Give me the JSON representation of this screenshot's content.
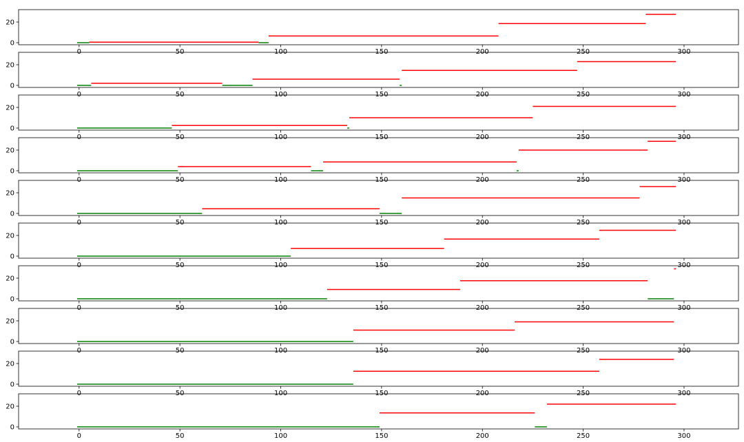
{
  "chart_data": [
    {
      "type": "line",
      "xlim": [
        -30,
        327
      ],
      "ylim": [
        -2,
        32
      ],
      "x_ticks": [
        0,
        50,
        100,
        150,
        200,
        250,
        300
      ],
      "y_ticks": [
        0,
        20
      ],
      "segments": [
        {
          "start": -1,
          "end": 5,
          "y": 0,
          "color": "#008000"
        },
        {
          "start": 5,
          "end": 89,
          "y": 0.5,
          "color": "#ff0000"
        },
        {
          "start": 89,
          "end": 94,
          "y": 0,
          "color": "#008000"
        },
        {
          "start": 94,
          "end": 208,
          "y": 6.5,
          "color": "#ff0000"
        },
        {
          "start": 208,
          "end": 281,
          "y": 18.5,
          "color": "#ff0000"
        },
        {
          "start": 281,
          "end": 296,
          "y": 27.5,
          "color": "#ff0000"
        }
      ]
    },
    {
      "type": "line",
      "xlim": [
        -30,
        327
      ],
      "ylim": [
        -2,
        32
      ],
      "x_ticks": [
        0,
        50,
        100,
        150,
        200,
        250,
        300
      ],
      "y_ticks": [
        0,
        20
      ],
      "segments": [
        {
          "start": -1,
          "end": 6,
          "y": 0,
          "color": "#008000"
        },
        {
          "start": 6,
          "end": 71,
          "y": 2,
          "color": "#ff0000"
        },
        {
          "start": 71,
          "end": 86,
          "y": 0,
          "color": "#008000"
        },
        {
          "start": 86,
          "end": 159,
          "y": 6,
          "color": "#ff0000"
        },
        {
          "start": 159,
          "end": 160,
          "y": 0,
          "color": "#008000"
        },
        {
          "start": 160,
          "end": 247,
          "y": 14.5,
          "color": "#ff0000"
        },
        {
          "start": 247,
          "end": 296,
          "y": 23,
          "color": "#ff0000"
        }
      ]
    },
    {
      "type": "line",
      "xlim": [
        -30,
        327
      ],
      "ylim": [
        -2,
        32
      ],
      "x_ticks": [
        0,
        50,
        100,
        150,
        200,
        250,
        300
      ],
      "y_ticks": [
        0,
        20
      ],
      "segments": [
        {
          "start": -1,
          "end": 46,
          "y": 0,
          "color": "#008000"
        },
        {
          "start": 46,
          "end": 133,
          "y": 2.5,
          "color": "#ff0000"
        },
        {
          "start": 133,
          "end": 134,
          "y": 0,
          "color": "#008000"
        },
        {
          "start": 134,
          "end": 225,
          "y": 10,
          "color": "#ff0000"
        },
        {
          "start": 225,
          "end": 296,
          "y": 21,
          "color": "#ff0000"
        }
      ]
    },
    {
      "type": "line",
      "xlim": [
        -30,
        327
      ],
      "ylim": [
        -2,
        32
      ],
      "x_ticks": [
        0,
        50,
        100,
        150,
        200,
        250,
        300
      ],
      "y_ticks": [
        0,
        20
      ],
      "segments": [
        {
          "start": -1,
          "end": 49,
          "y": 0,
          "color": "#008000"
        },
        {
          "start": 49,
          "end": 115,
          "y": 4,
          "color": "#ff0000"
        },
        {
          "start": 115,
          "end": 121,
          "y": 0,
          "color": "#008000"
        },
        {
          "start": 121,
          "end": 217,
          "y": 8.5,
          "color": "#ff0000"
        },
        {
          "start": 217,
          "end": 218,
          "y": 0,
          "color": "#008000"
        },
        {
          "start": 218,
          "end": 282,
          "y": 20,
          "color": "#ff0000"
        },
        {
          "start": 282,
          "end": 296,
          "y": 28.5,
          "color": "#ff0000"
        }
      ]
    },
    {
      "type": "line",
      "xlim": [
        -30,
        327
      ],
      "ylim": [
        -2,
        32
      ],
      "x_ticks": [
        0,
        50,
        100,
        150,
        200,
        250,
        300
      ],
      "y_ticks": [
        0,
        20
      ],
      "segments": [
        {
          "start": -1,
          "end": 61,
          "y": 0,
          "color": "#008000"
        },
        {
          "start": 61,
          "end": 149,
          "y": 4.5,
          "color": "#ff0000"
        },
        {
          "start": 149,
          "end": 160,
          "y": 0,
          "color": "#008000"
        },
        {
          "start": 160,
          "end": 278,
          "y": 15,
          "color": "#ff0000"
        },
        {
          "start": 278,
          "end": 296,
          "y": 26,
          "color": "#ff0000"
        }
      ]
    },
    {
      "type": "line",
      "xlim": [
        -30,
        327
      ],
      "ylim": [
        -2,
        32
      ],
      "x_ticks": [
        0,
        50,
        100,
        150,
        200,
        250,
        300
      ],
      "y_ticks": [
        0,
        20
      ],
      "segments": [
        {
          "start": -1,
          "end": 105,
          "y": 0,
          "color": "#008000"
        },
        {
          "start": 105,
          "end": 181,
          "y": 7.5,
          "color": "#ff0000"
        },
        {
          "start": 181,
          "end": 258,
          "y": 16.5,
          "color": "#ff0000"
        },
        {
          "start": 258,
          "end": 296,
          "y": 25,
          "color": "#ff0000"
        }
      ]
    },
    {
      "type": "line",
      "xlim": [
        -30,
        327
      ],
      "ylim": [
        -2,
        32
      ],
      "x_ticks": [
        0,
        50,
        100,
        150,
        200,
        250,
        300
      ],
      "y_ticks": [
        0,
        20
      ],
      "segments": [
        {
          "start": -1,
          "end": 123,
          "y": 0,
          "color": "#008000"
        },
        {
          "start": 123,
          "end": 189,
          "y": 9,
          "color": "#ff0000"
        },
        {
          "start": 189,
          "end": 282,
          "y": 17.5,
          "color": "#ff0000"
        },
        {
          "start": 282,
          "end": 295,
          "y": 0,
          "color": "#008000"
        },
        {
          "start": 295,
          "end": 296,
          "y": 29,
          "color": "#ff0000"
        }
      ]
    },
    {
      "type": "line",
      "xlim": [
        -30,
        327
      ],
      "ylim": [
        -2,
        32
      ],
      "x_ticks": [
        0,
        50,
        100,
        150,
        200,
        250,
        300
      ],
      "y_ticks": [
        0,
        20
      ],
      "segments": [
        {
          "start": -1,
          "end": 136,
          "y": 0,
          "color": "#008000"
        },
        {
          "start": 136,
          "end": 216,
          "y": 11,
          "color": "#ff0000"
        },
        {
          "start": 216,
          "end": 295,
          "y": 19,
          "color": "#ff0000"
        }
      ]
    },
    {
      "type": "line",
      "xlim": [
        -30,
        327
      ],
      "ylim": [
        -2,
        32
      ],
      "x_ticks": [
        0,
        50,
        100,
        150,
        200,
        250,
        300
      ],
      "y_ticks": [
        0,
        20
      ],
      "segments": [
        {
          "start": -1,
          "end": 136,
          "y": 0,
          "color": "#008000"
        },
        {
          "start": 136,
          "end": 258,
          "y": 12.5,
          "color": "#ff0000"
        },
        {
          "start": 258,
          "end": 295,
          "y": 24,
          "color": "#ff0000"
        }
      ]
    },
    {
      "type": "line",
      "xlim": [
        -30,
        327
      ],
      "ylim": [
        -2,
        32
      ],
      "x_ticks": [
        0,
        50,
        100,
        150,
        200,
        250,
        300
      ],
      "y_ticks": [
        0,
        20
      ],
      "segments": [
        {
          "start": -1,
          "end": 149,
          "y": 0,
          "color": "#008000"
        },
        {
          "start": 149,
          "end": 226,
          "y": 13.5,
          "color": "#ff0000"
        },
        {
          "start": 226,
          "end": 232,
          "y": 0,
          "color": "#008000"
        },
        {
          "start": 232,
          "end": 296,
          "y": 22,
          "color": "#ff0000"
        }
      ]
    }
  ]
}
